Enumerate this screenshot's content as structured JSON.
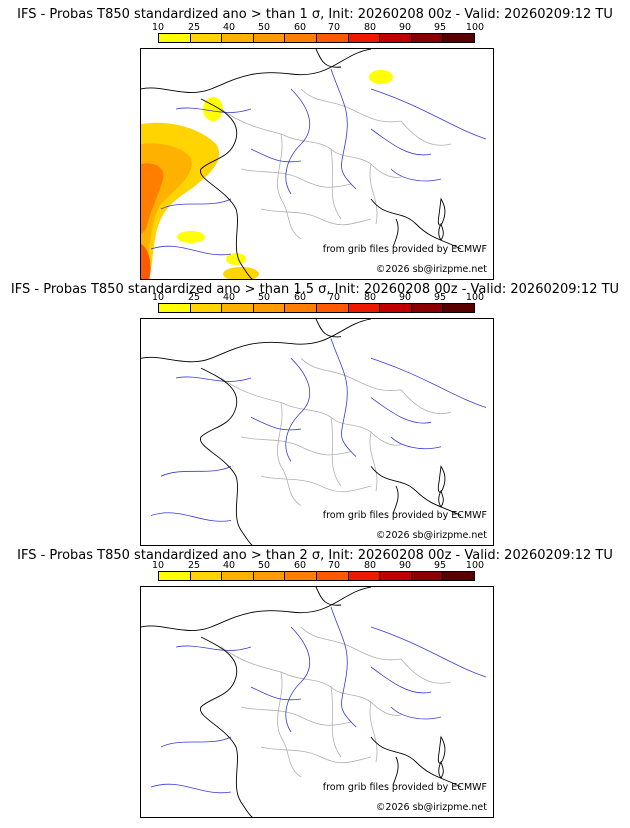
{
  "scale": {
    "labels": [
      "10",
      "25",
      "40",
      "50",
      "60",
      "70",
      "80",
      "90",
      "95",
      "100"
    ],
    "colors": [
      "#ffff00",
      "#ffd400",
      "#ffb100",
      "#ff9a00",
      "#ff7d00",
      "#ff5a00",
      "#ee1a00",
      "#c00000",
      "#8a0000",
      "#5a0000"
    ]
  },
  "credits": {
    "source": "from grib files provided by ECMWF",
    "copyright": "©2026 sb@irizpme.net"
  },
  "panels": [
    {
      "title": "IFS - Probas T850  standardized ano > than 1 σ, Init: 20260208 00z - Valid: 20260209:12 TU",
      "has_anomaly": true
    },
    {
      "title": "IFS - Probas T850  standardized ano > than 1.5 σ, Init: 20260208 00z - Valid: 20260209:12 TU",
      "has_anomaly": false
    },
    {
      "title": "IFS - Probas T850  standardized ano > than 2 σ, Init: 20260208 00z - Valid: 20260209:12 TU",
      "has_anomaly": false
    }
  ]
}
